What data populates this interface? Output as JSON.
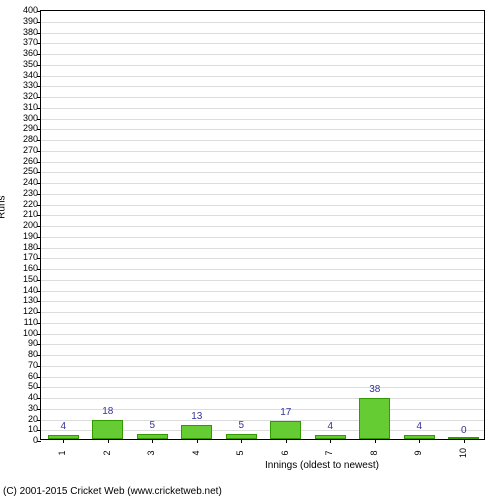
{
  "chart": {
    "type": "bar",
    "y_axis_label": "Runs",
    "x_axis_label": "Innings (oldest to newest)",
    "ylim": [
      0,
      400
    ],
    "ytick_step": 10,
    "bar_color": "#66cc33",
    "bar_border_color": "#339900",
    "label_color": "#333399",
    "grid_color": "#dcdcdc",
    "background_color": "#ffffff",
    "border_color": "#000000",
    "bar_width_ratio": 0.7,
    "categories": [
      "1",
      "2",
      "3",
      "4",
      "5",
      "6",
      "7",
      "8",
      "9",
      "10"
    ],
    "values": [
      4,
      18,
      5,
      13,
      5,
      17,
      4,
      38,
      4,
      0
    ],
    "label_fontsize": 10,
    "tick_fontsize": 9
  },
  "copyright": "(C) 2001-2015 Cricket Web (www.cricketweb.net)"
}
